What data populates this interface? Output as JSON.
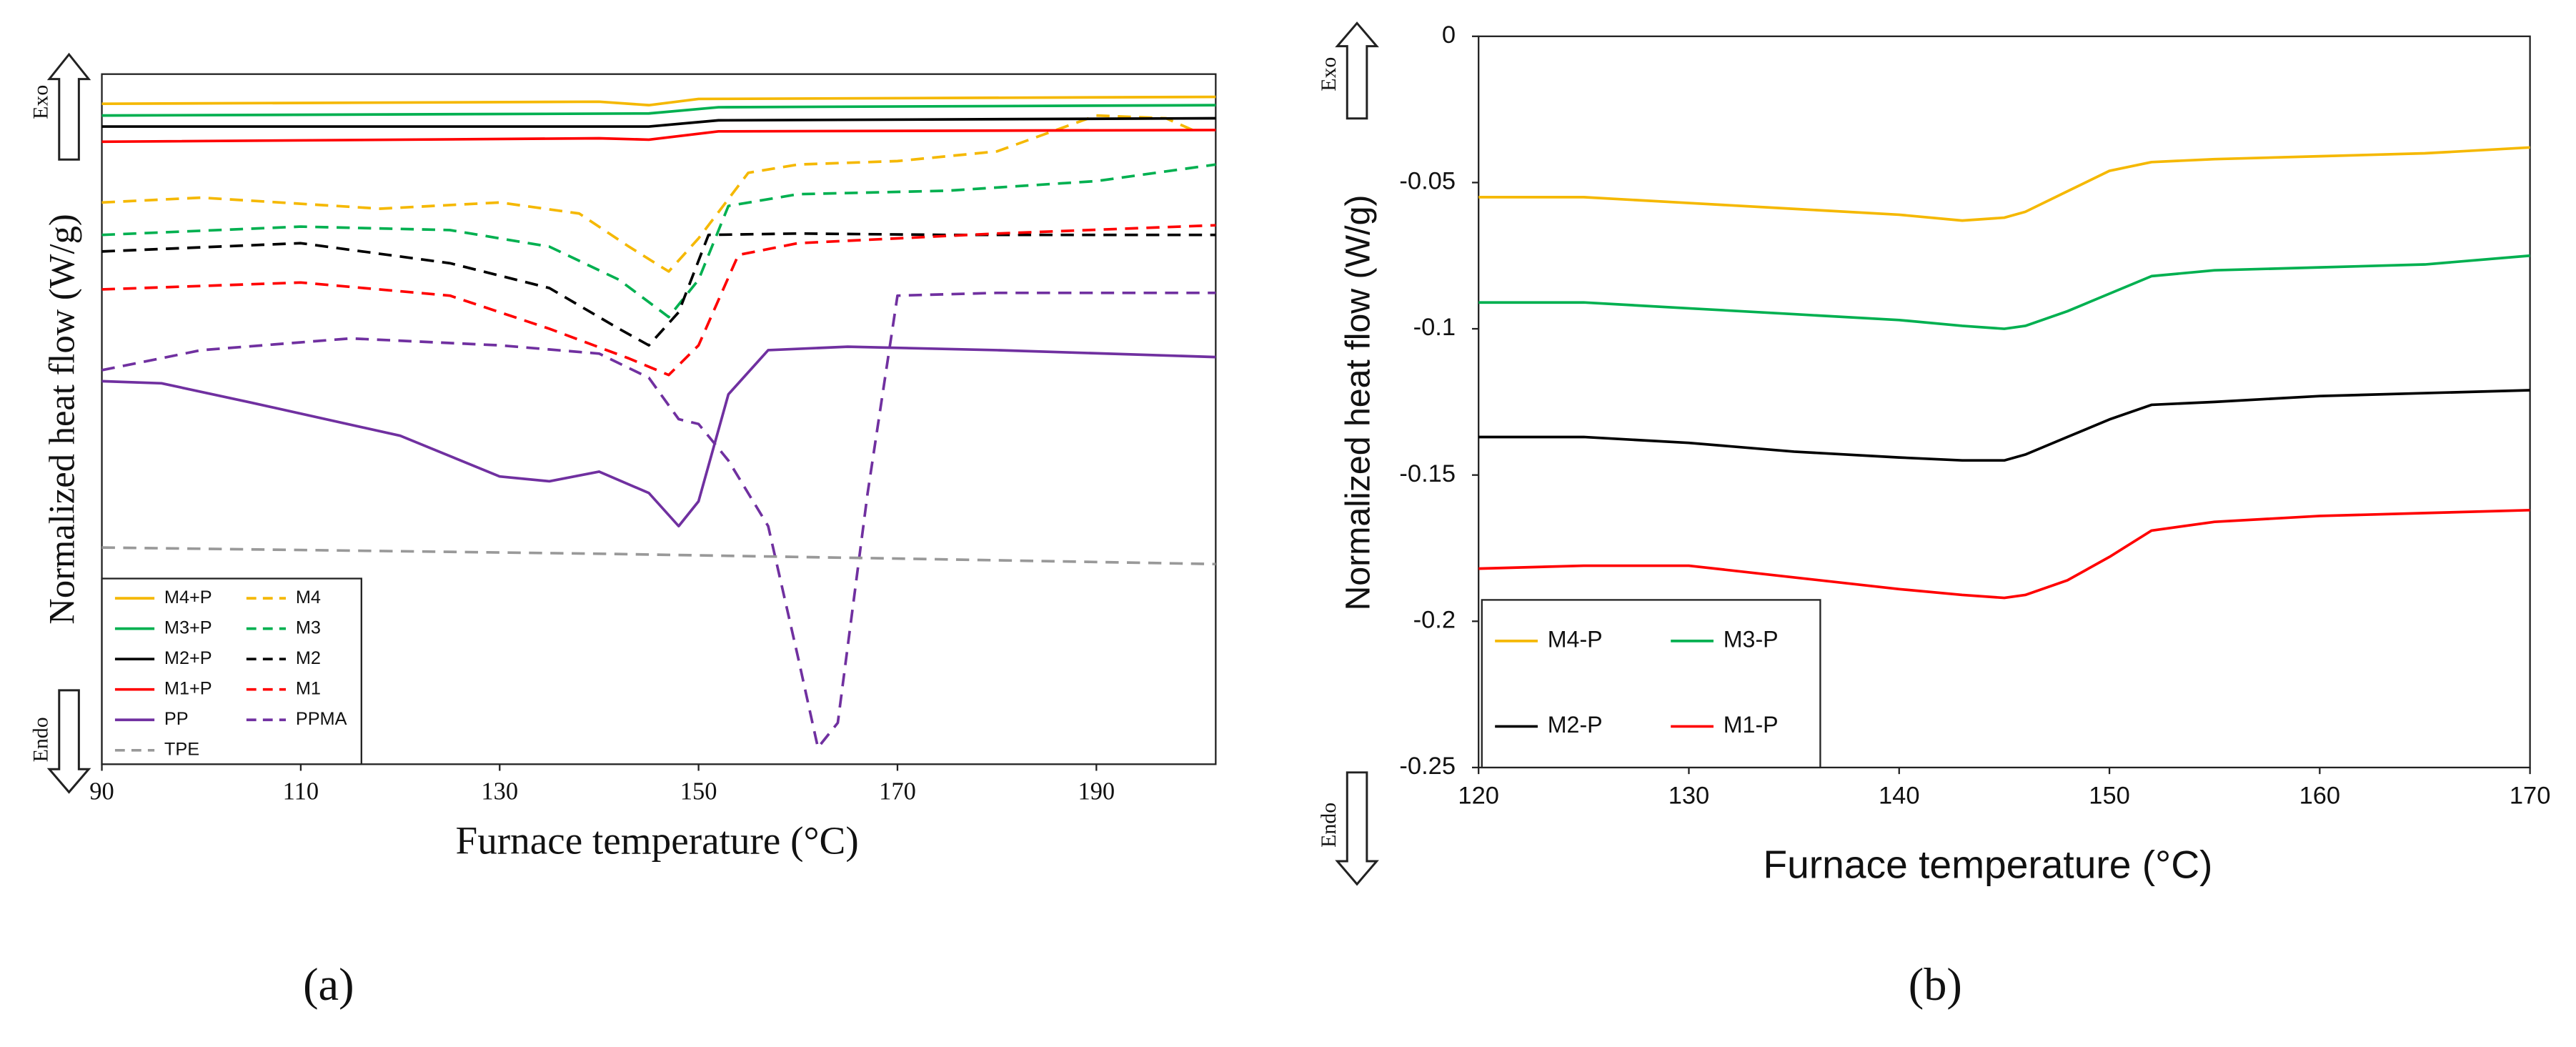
{
  "chart_data": [
    {
      "type": "line",
      "panel_label": "(a)",
      "x_label": "Furnace temperature (°C)",
      "y_label": "Normalized heat flow (W/g)",
      "annotations": [
        "Exo",
        "Endo"
      ],
      "xlim": [
        90,
        202
      ],
      "xticks": [
        90,
        110,
        130,
        150,
        170,
        190
      ],
      "ylim": [
        0,
        100
      ],
      "legend": "lower left",
      "series": [
        {
          "name": "M4+P",
          "color": "#f5b800",
          "dash": false,
          "x": [
            90,
            140,
            145,
            150,
            202
          ],
          "values": [
            95.7,
            96,
            95.5,
            96.4,
            96.7
          ]
        },
        {
          "name": "M4",
          "color": "#f5b800",
          "dash": true,
          "x": [
            90,
            100,
            118,
            130,
            138,
            143,
            147,
            150,
            155,
            160,
            170,
            180,
            190,
            197,
            200
          ],
          "values": [
            81.4,
            82.1,
            80.5,
            81.4,
            79.8,
            75,
            71.4,
            76.2,
            85.7,
            86.9,
            87.4,
            88.8,
            94,
            93.6,
            91.7
          ]
        },
        {
          "name": "M3+P",
          "color": "#00b050",
          "dash": false,
          "x": [
            90,
            145,
            152,
            202
          ],
          "values": [
            94,
            94.3,
            95.2,
            95.5
          ]
        },
        {
          "name": "M3",
          "color": "#00b050",
          "dash": true,
          "x": [
            90,
            110,
            125,
            135,
            142,
            147,
            150,
            153,
            160,
            175,
            190,
            202
          ],
          "values": [
            76.7,
            77.9,
            77.4,
            75,
            70.2,
            64.8,
            70.2,
            80.9,
            82.6,
            83.1,
            84.5,
            86.9
          ]
        },
        {
          "name": "M2+P",
          "color": "#000000",
          "dash": false,
          "x": [
            90,
            145,
            152,
            202
          ],
          "values": [
            92.4,
            92.4,
            93.3,
            93.6
          ]
        },
        {
          "name": "M2",
          "color": "#000000",
          "dash": true,
          "x": [
            90,
            110,
            125,
            135,
            142,
            145,
            148,
            151,
            160,
            175,
            202
          ],
          "values": [
            74.3,
            75.5,
            72.6,
            69,
            63.1,
            60.7,
            65.5,
            76.7,
            76.9,
            76.7,
            76.7
          ]
        },
        {
          "name": "M1+P",
          "color": "#ff0000",
          "dash": false,
          "x": [
            90,
            140,
            145,
            152,
            202
          ],
          "values": [
            90.2,
            90.7,
            90.5,
            91.7,
            91.9
          ]
        },
        {
          "name": "M1",
          "color": "#ff0000",
          "dash": true,
          "x": [
            90,
            110,
            125,
            135,
            143,
            147,
            150,
            154,
            160,
            180,
            202
          ],
          "values": [
            68.8,
            69.8,
            67.9,
            63.1,
            58.8,
            56.4,
            60.7,
            73.8,
            75.5,
            76.9,
            78.1
          ]
        },
        {
          "name": "PP",
          "color": "#7030a0",
          "dash": false,
          "x": [
            90,
            96,
            105,
            120,
            130,
            135,
            140,
            145,
            148,
            150,
            153,
            157,
            165,
            180,
            202
          ],
          "values": [
            55.5,
            55.2,
            52.4,
            47.6,
            41.7,
            41,
            42.4,
            39.3,
            34.5,
            38.1,
            53.6,
            60,
            60.5,
            60,
            59
          ]
        },
        {
          "name": "PPMA",
          "color": "#7030a0",
          "dash": true,
          "x": [
            90,
            100,
            115,
            130,
            140,
            145,
            148,
            150,
            153,
            157,
            160,
            162,
            164,
            167,
            170,
            180,
            202
          ],
          "values": [
            57.1,
            60,
            61.7,
            60.7,
            59.5,
            56,
            50,
            49.3,
            44,
            34.5,
            15.5,
            2.4,
            6,
            39.3,
            67.9,
            68.3,
            68.3
          ]
        },
        {
          "name": "TPE",
          "color": "#999999",
          "dash": true,
          "x": [
            90,
            140,
            170,
            202
          ],
          "values": [
            31.4,
            30.5,
            29.8,
            29
          ]
        }
      ]
    },
    {
      "type": "line",
      "panel_label": "(b)",
      "x_label": "Furnace temperature (°C)",
      "y_label": "Normalized heat flow (W/g)",
      "annotations": [
        "Exo",
        "Endo"
      ],
      "xlim": [
        120,
        170
      ],
      "xticks": [
        120,
        130,
        140,
        150,
        160,
        170
      ],
      "ylim": [
        -0.25,
        0
      ],
      "yticks": [
        0,
        -0.05,
        -0.1,
        -0.15,
        -0.2,
        -0.25
      ],
      "legend": "lower left",
      "x": [
        120,
        125,
        130,
        135,
        140,
        143,
        145,
        146,
        148,
        150,
        152,
        155,
        160,
        165,
        170
      ],
      "series": [
        {
          "name": "M4-P",
          "color": "#f5b800",
          "values": [
            -0.055,
            -0.055,
            -0.057,
            -0.059,
            -0.061,
            -0.063,
            -0.062,
            -0.06,
            -0.053,
            -0.046,
            -0.043,
            -0.042,
            -0.041,
            -0.04,
            -0.038
          ]
        },
        {
          "name": "M3-P",
          "color": "#00b050",
          "values": [
            -0.091,
            -0.091,
            -0.093,
            -0.095,
            -0.097,
            -0.099,
            -0.1,
            -0.099,
            -0.094,
            -0.088,
            -0.082,
            -0.08,
            -0.079,
            -0.078,
            -0.075
          ]
        },
        {
          "name": "M2-P",
          "color": "#000000",
          "values": [
            -0.137,
            -0.137,
            -0.139,
            -0.142,
            -0.144,
            -0.145,
            -0.145,
            -0.143,
            -0.137,
            -0.131,
            -0.126,
            -0.125,
            -0.123,
            -0.122,
            -0.121
          ]
        },
        {
          "name": "M1-P",
          "color": "#ff0000",
          "values": [
            -0.182,
            -0.181,
            -0.181,
            -0.185,
            -0.189,
            -0.191,
            -0.192,
            -0.191,
            -0.186,
            -0.178,
            -0.169,
            -0.166,
            -0.164,
            -0.163,
            -0.162
          ]
        }
      ]
    }
  ]
}
